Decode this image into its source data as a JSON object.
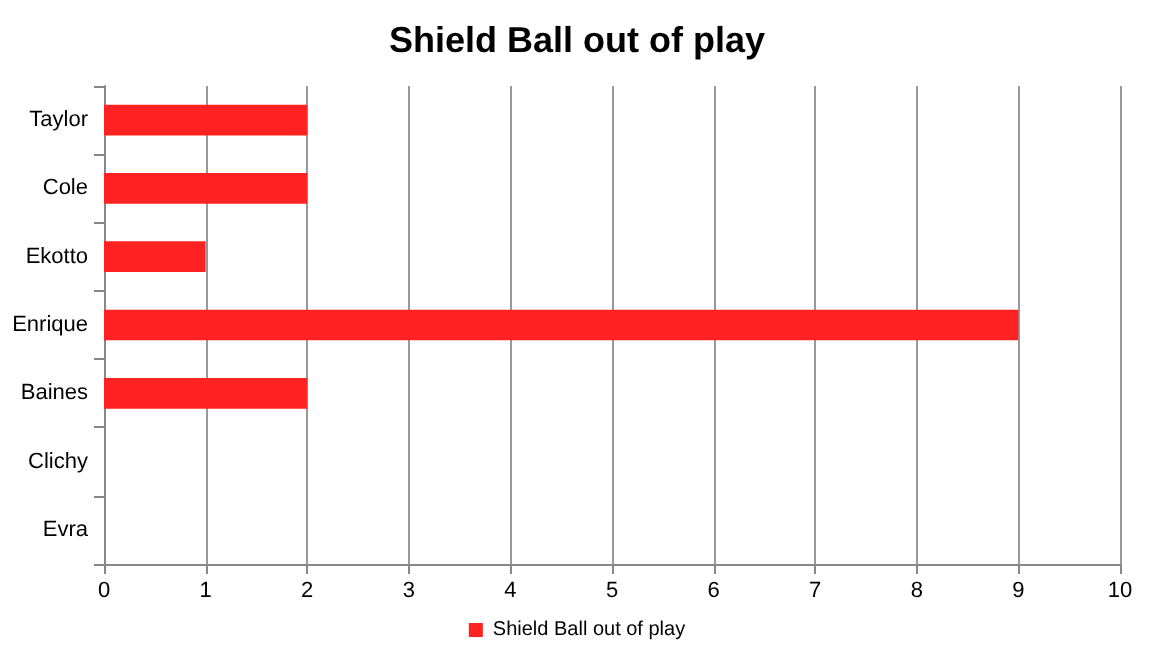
{
  "chart_data": {
    "type": "bar",
    "orientation": "horizontal",
    "title": "Shield Ball out of play",
    "categories": [
      "Taylor",
      "Cole",
      "Ekotto",
      "Enrique",
      "Baines",
      "Clichy",
      "Evra"
    ],
    "series": [
      {
        "name": "Shield Ball out of play",
        "color": "#ff2222",
        "values": [
          2,
          2,
          1,
          9,
          2,
          0,
          0
        ]
      }
    ],
    "xlim": [
      0,
      10
    ],
    "xticks": [
      0,
      1,
      2,
      3,
      4,
      5,
      6,
      7,
      8,
      9,
      10
    ],
    "grid": "x",
    "legend": "bottom"
  }
}
